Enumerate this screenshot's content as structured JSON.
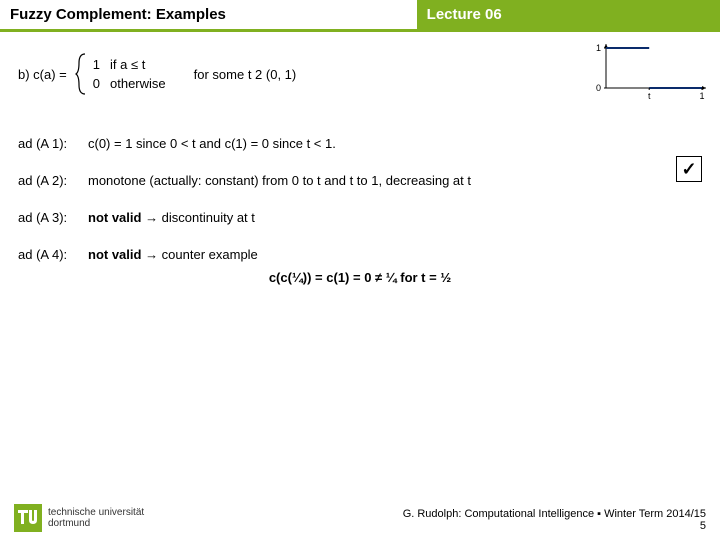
{
  "header": {
    "left": "Fuzzy Complement: Examples",
    "right": "Lecture 06",
    "accent_color": "#80b020"
  },
  "definition": {
    "label": "b)  c(a) =",
    "row1_val": "1",
    "row1_cond": "if a ≤ t",
    "row2_val": "0",
    "row2_cond": "otherwise",
    "for_some": "for some t 2 (0, 1)"
  },
  "chart": {
    "type": "step-function",
    "xlim": [
      0,
      1.0
    ],
    "ylim": [
      0,
      1.0
    ],
    "t": 0.45,
    "line_color": "#0a2b6b",
    "line_width": 2,
    "axis_color": "#000000",
    "x_ticks": [
      {
        "pos": 0.45,
        "label": "t"
      },
      {
        "pos": 1.0,
        "label": "1"
      }
    ],
    "y_ticks": [
      {
        "pos": 0,
        "label": "0"
      },
      {
        "pos": 1.0,
        "label": "1"
      }
    ],
    "tick_fontsize": 9
  },
  "axioms": {
    "a1_tag": "ad (A 1):",
    "a1_body": "c(0) = 1 since 0 < t   and  c(1) = 0 since t < 1.",
    "a2_tag": "ad (A 2):",
    "a2_body": "monotone (actually: constant) from 0 to t and t to 1, decreasing at t",
    "a3_tag": "ad (A 3):",
    "a3_nv": "not valid",
    "a3_rest": " → discontinuity at t",
    "a4_tag": "ad (A 4):",
    "a4_nv": "not valid",
    "a4_rest": " → counter example",
    "a4_center": "c(c(¼)) = c(1) = 0  ≠  ¼  for t = ½"
  },
  "checkmark": "☑",
  "footer": {
    "uni_line1": "technische universität",
    "uni_line2": "dortmund",
    "credit": "G. Rudolph: Computational Intelligence ▪ Winter Term 2014/15",
    "page": "5",
    "logo_color": "#80b020"
  }
}
